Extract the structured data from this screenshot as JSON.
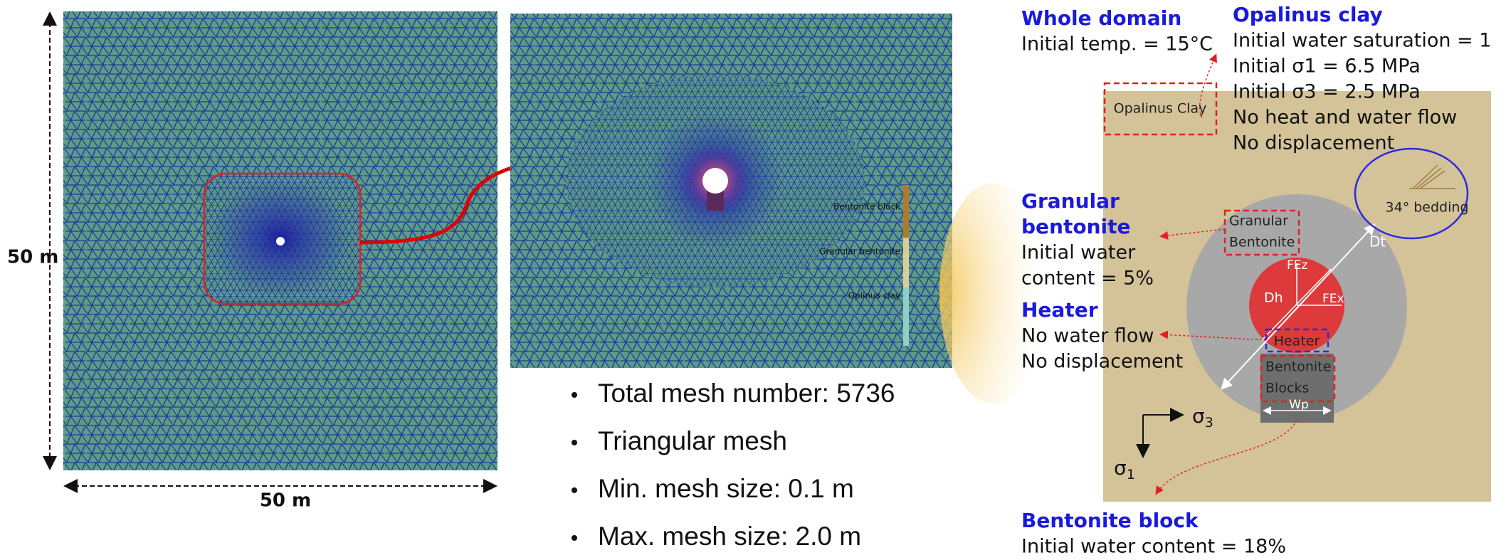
{
  "mesh": {
    "height_label": "50 m",
    "width_label": "50 m",
    "inset_labels": [
      "Bentonite block",
      "Granular bentonite",
      "Oplinus clay"
    ],
    "bullets": [
      "Total mesh number: 5736",
      "Triangular mesh",
      "Min. mesh size: 0.1 m",
      "Max. mesh size: 2.0 m"
    ]
  },
  "conditions": {
    "whole_domain": {
      "title": [
        "Whole domain"
      ],
      "lines": [
        "Initial temp. = 15°C"
      ]
    },
    "opalinus_clay": {
      "title": [
        "Opalinus clay"
      ],
      "lines": [
        "Initial water saturation = 1",
        "Initial σ1 = 6.5 MPa",
        "Initial σ3 = 2.5 MPa",
        "No heat and water flow",
        "No displacement"
      ]
    },
    "granular_bentonite": {
      "title": [
        "Granular",
        "bentonite"
      ],
      "lines": [
        "Initial water",
        "content = 5%"
      ]
    },
    "heater": {
      "title": [
        "Heater"
      ],
      "lines": [
        "No water flow",
        "No displacement"
      ]
    },
    "bentonite_block": {
      "title": [
        "Bentonite block"
      ],
      "lines": [
        "Initial water content = 18%"
      ]
    }
  },
  "schematic": {
    "opalinus_box": "Opalinus Clay",
    "granular_box": [
      "Granular",
      "Bentonite"
    ],
    "heater_box": "Heater",
    "blocks_box": [
      "Bentonite",
      "Blocks"
    ],
    "bedding": "34° bedding",
    "dt": "Dt",
    "dh": "Dh",
    "fez": "FEz",
    "fex": "FEx",
    "wp": "Wp",
    "sigma3": {
      "symbol": "σ",
      "index": "3"
    },
    "sigma1": {
      "symbol": "σ",
      "index": "1"
    }
  }
}
